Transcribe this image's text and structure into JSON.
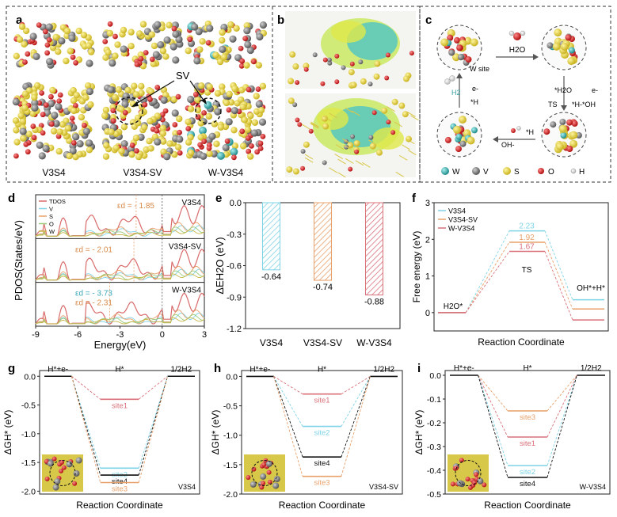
{
  "panel_a": {
    "label": "a",
    "struct_labels": [
      "V3S4",
      "V3S4-SV",
      "W-V3S4"
    ],
    "vacancy_label": "SV"
  },
  "panel_b": {
    "label": "b"
  },
  "panel_c": {
    "label": "c",
    "h2o": "H2O",
    "h2o_star": "*H2O",
    "e1": "e-",
    "ts_line": "TS",
    "h_oh": "*H-*OH",
    "h_dot": "*H",
    "oh_minus": "OH-",
    "w_site": "W site",
    "e2": "e-",
    "h2": "H2",
    "h_star": "*H",
    "legend": [
      "W",
      "V",
      "S",
      "O",
      "H"
    ]
  },
  "colors": {
    "teal": "#7fd3e6",
    "orange": "#e8a06a",
    "red": "#d9707a",
    "pink": "#e58a8a",
    "green": "#9acb7a",
    "yellow": "#d4c03a",
    "black": "#222222",
    "S_atom": "#e8d23a",
    "W_atom": "#3ab0b0",
    "V_atom": "#808080",
    "O_atom": "#d82020",
    "H_atom": "#eeeeee"
  },
  "chart_data": [
    {
      "panel": "d",
      "type": "line",
      "xlabel": "Energy(eV)",
      "ylabel": "PDOS(States/eV)",
      "xlim": [
        -9,
        3
      ],
      "xticks": [
        "-9",
        "-6",
        "-3",
        "0",
        "3"
      ],
      "legend": [
        "TDOS",
        "V",
        "S",
        "O",
        "W"
      ],
      "subpanels": [
        {
          "name": "V3S4",
          "ed": "εd = - 1.85"
        },
        {
          "name": "V3S4-SV",
          "ed": "εd = - 2.01"
        },
        {
          "name": "W-V3S4",
          "ed": "εd = - 3.73",
          "ed2": "εd = - 2.31"
        }
      ]
    },
    {
      "panel": "e",
      "type": "bar",
      "ylabel": "ΔEH2O (eV)",
      "categories": [
        "V3S4",
        "V3S4-SV",
        "W-V3S4"
      ],
      "values": [
        -0.64,
        -0.74,
        -0.88
      ],
      "value_labels": [
        "-0.64",
        "-0.74",
        "-0.88"
      ],
      "ylim": [
        -1.2,
        0
      ],
      "yticks": [
        "0.0",
        "-0.3",
        "-0.6",
        "-0.9",
        "-1.2"
      ]
    },
    {
      "panel": "f",
      "type": "line",
      "xlabel": "Reaction Coordinate",
      "ylabel": "Free energy (eV)",
      "ylim": [
        -0.5,
        3
      ],
      "yticks": [
        "0",
        "1",
        "2",
        "3"
      ],
      "states": [
        "H2O*",
        "TS",
        "OH*+H*"
      ],
      "series": [
        {
          "name": "V3S4",
          "values": [
            0,
            2.23,
            0.35
          ],
          "ts_label": "2.23"
        },
        {
          "name": "V3S4-SV",
          "values": [
            0,
            1.92,
            0.1
          ],
          "ts_label": "1.92"
        },
        {
          "name": "W-V3S4",
          "values": [
            0,
            1.67,
            -0.2
          ],
          "ts_label": "1.67"
        }
      ],
      "state_labels": [
        "H2O*",
        "TS",
        "OH*+H*"
      ]
    },
    {
      "panel": "g",
      "type": "line",
      "xlabel": "Reaction Coordinate",
      "ylabel": "ΔGH* (eV)",
      "ylim": [
        -2.05,
        0.1
      ],
      "yticks": [
        "0.0",
        "-0.5",
        "-1.0",
        "-1.5",
        "-2.0"
      ],
      "left_label": "H*+e-",
      "mid_label": "H*",
      "right_label": "1/2H2",
      "tag": "V3S4",
      "sites": [
        {
          "name": "site1",
          "value": -0.4
        },
        {
          "name": "site2",
          "value": -1.6
        },
        {
          "name": "site4",
          "value": -1.72
        },
        {
          "name": "site3",
          "value": -1.85
        }
      ]
    },
    {
      "panel": "h",
      "type": "line",
      "xlabel": "Reaction Coordinate",
      "ylabel": "ΔGH* (eV)",
      "ylim": [
        -2.0,
        0.1
      ],
      "yticks": [
        "0.0",
        "-0.5",
        "-1.0",
        "-1.5",
        "-2.0"
      ],
      "left_label": "H*+e-",
      "mid_label": "H*",
      "right_label": "1/2H2",
      "tag": "V3S4-SV",
      "sites": [
        {
          "name": "site1",
          "value": -0.3
        },
        {
          "name": "site2",
          "value": -0.85
        },
        {
          "name": "site4",
          "value": -1.37
        },
        {
          "name": "site3",
          "value": -1.7
        }
      ]
    },
    {
      "panel": "i",
      "type": "line",
      "xlabel": "Reaction Coordinate",
      "ylabel": "ΔGH* (eV)",
      "ylim": [
        -0.5,
        0.02
      ],
      "yticks": [
        "0.0",
        "-0.1",
        "-0.2",
        "-0.3",
        "-0.4",
        "-0.5"
      ],
      "left_label": "H*+e-",
      "mid_label": "H*",
      "right_label": "1/2H2",
      "tag": "W-V3S4",
      "sites": [
        {
          "name": "site3",
          "value": -0.15
        },
        {
          "name": "site1",
          "value": -0.26
        },
        {
          "name": "site2",
          "value": -0.38
        },
        {
          "name": "site4",
          "value": -0.43
        }
      ]
    }
  ]
}
